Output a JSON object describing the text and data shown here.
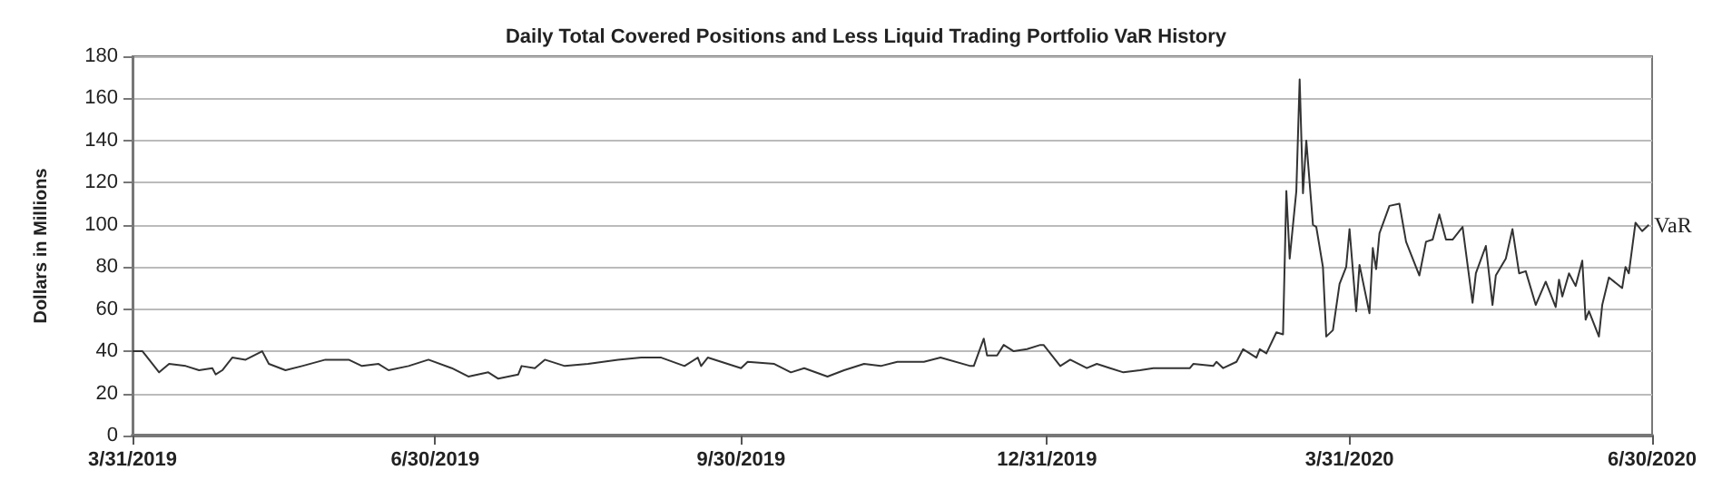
{
  "chart_data": {
    "type": "line",
    "title": "Daily Total Covered Positions and Less Liquid Trading Portfolio VaR History",
    "ylabel": "Dollars in Millions",
    "x": [
      "2019-03-31",
      "2019-04-03",
      "2019-04-08",
      "2019-04-11",
      "2019-04-16",
      "2019-04-20",
      "2019-04-24",
      "2019-04-25",
      "2019-04-27",
      "2019-04-30",
      "2019-05-04",
      "2019-05-09",
      "2019-05-11",
      "2019-05-16",
      "2019-05-21",
      "2019-05-28",
      "2019-06-04",
      "2019-06-08",
      "2019-06-13",
      "2019-06-16",
      "2019-06-22",
      "2019-06-28",
      "2019-07-05",
      "2019-07-10",
      "2019-07-16",
      "2019-07-19",
      "2019-07-25",
      "2019-07-26",
      "2019-07-30",
      "2019-08-02",
      "2019-08-08",
      "2019-08-15",
      "2019-08-24",
      "2019-08-31",
      "2019-09-06",
      "2019-09-13",
      "2019-09-17",
      "2019-09-18",
      "2019-09-20",
      "2019-09-30",
      "2019-10-02",
      "2019-10-10",
      "2019-10-15",
      "2019-10-19",
      "2019-10-26",
      "2019-10-31",
      "2019-11-06",
      "2019-11-11",
      "2019-11-16",
      "2019-11-24",
      "2019-11-29",
      "2019-12-08",
      "2019-12-09",
      "2019-12-12",
      "2019-12-13",
      "2019-12-16",
      "2019-12-18",
      "2019-12-21",
      "2019-12-25",
      "2019-12-29",
      "2019-12-30",
      "2020-01-04",
      "2020-01-07",
      "2020-01-12",
      "2020-01-15",
      "2020-01-19",
      "2020-01-23",
      "2020-01-28",
      "2020-02-01",
      "2020-02-12",
      "2020-02-13",
      "2020-02-19",
      "2020-02-20",
      "2020-02-22",
      "2020-02-26",
      "2020-02-28",
      "2020-03-03",
      "2020-03-04",
      "2020-03-06",
      "2020-03-09",
      "2020-03-11",
      "2020-03-12",
      "2020-03-13",
      "2020-03-15",
      "2020-03-16",
      "2020-03-17",
      "2020-03-18",
      "2020-03-20",
      "2020-03-21",
      "2020-03-23",
      "2020-03-24",
      "2020-03-26",
      "2020-03-28",
      "2020-03-30",
      "2020-03-31",
      "2020-04-02",
      "2020-04-03",
      "2020-04-06",
      "2020-04-07",
      "2020-04-08",
      "2020-04-09",
      "2020-04-12",
      "2020-04-15",
      "2020-04-17",
      "2020-04-21",
      "2020-04-23",
      "2020-04-25",
      "2020-04-27",
      "2020-04-29",
      "2020-05-01",
      "2020-05-04",
      "2020-05-07",
      "2020-05-08",
      "2020-05-11",
      "2020-05-13",
      "2020-05-14",
      "2020-05-17",
      "2020-05-19",
      "2020-05-21",
      "2020-05-23",
      "2020-05-26",
      "2020-05-29",
      "2020-06-01",
      "2020-06-02",
      "2020-06-03",
      "2020-06-05",
      "2020-06-07",
      "2020-06-09",
      "2020-06-10",
      "2020-06-11",
      "2020-06-14",
      "2020-06-15",
      "2020-06-17",
      "2020-06-21",
      "2020-06-22",
      "2020-06-23",
      "2020-06-25",
      "2020-06-27",
      "2020-06-29"
    ],
    "series": [
      {
        "name": "VaR",
        "color": "#333333",
        "values": [
          40,
          40,
          30,
          34,
          33,
          31,
          32,
          29,
          31,
          37,
          36,
          40,
          34,
          31,
          33,
          36,
          36,
          33,
          34,
          31,
          33,
          36,
          32,
          28,
          30,
          27,
          29,
          33,
          32,
          36,
          33,
          34,
          36,
          37,
          37,
          33,
          37,
          33,
          37,
          32,
          35,
          34,
          30,
          32,
          28,
          31,
          34,
          33,
          35,
          35,
          37,
          33,
          33,
          46,
          38,
          38,
          43,
          40,
          41,
          43,
          43,
          33,
          36,
          32,
          34,
          32,
          30,
          31,
          32,
          32,
          34,
          33,
          35,
          32,
          35,
          41,
          37,
          41,
          39,
          49,
          48,
          116,
          84,
          116,
          169,
          115,
          140,
          100,
          99,
          80,
          47,
          50,
          72,
          80,
          98,
          59,
          81,
          58,
          89,
          79,
          96,
          109,
          110,
          92,
          76,
          92,
          93,
          105,
          93,
          93,
          99,
          63,
          77,
          90,
          62,
          76,
          84,
          98,
          77,
          78,
          62,
          73,
          61,
          74,
          66,
          77,
          71,
          83,
          55,
          59,
          47,
          62,
          75,
          70,
          80,
          77,
          101,
          97,
          100
        ]
      }
    ],
    "xlim": [
      "2019-03-31",
      "2020-06-30"
    ],
    "xticks": [
      {
        "value": "2019-03-31",
        "label": "3/31/2019"
      },
      {
        "value": "2019-06-30",
        "label": "6/30/2019"
      },
      {
        "value": "2019-09-30",
        "label": "9/30/2019"
      },
      {
        "value": "2019-12-31",
        "label": "12/31/2019"
      },
      {
        "value": "2020-03-31",
        "label": "3/31/2020"
      },
      {
        "value": "2020-06-30",
        "label": "6/30/2020"
      }
    ],
    "ylim": [
      0,
      180
    ],
    "yticks": [
      0,
      20,
      40,
      60,
      80,
      100,
      120,
      140,
      160,
      180
    ],
    "grid": "y",
    "marker": "none",
    "line_style": "solid"
  }
}
